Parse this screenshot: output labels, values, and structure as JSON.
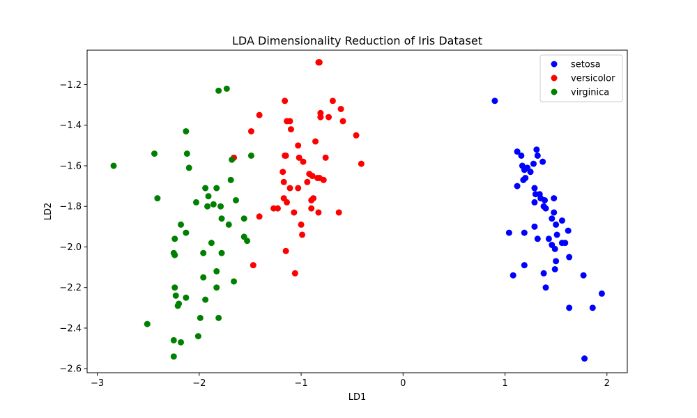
{
  "chart_data": {
    "type": "scatter",
    "title": "LDA Dimensionality Reduction of Iris Dataset",
    "xlabel": "LD1",
    "ylabel": "LD2",
    "xlim": [
      -3.1,
      2.2
    ],
    "ylim": [
      -2.62,
      -1.03
    ],
    "xticks": [
      -3,
      -2,
      -1,
      0,
      1,
      2
    ],
    "xtick_labels": [
      "−3",
      "−2",
      "−1",
      "0",
      "1",
      "2"
    ],
    "yticks": [
      -2.6,
      -2.4,
      -2.2,
      -2.0,
      -1.8,
      -1.6,
      -1.4,
      -1.2
    ],
    "ytick_labels": [
      "−2.6",
      "−2.4",
      "−2.2",
      "−2.0",
      "−1.8",
      "−1.6",
      "−1.4",
      "−1.2"
    ],
    "grid": false,
    "legend_position": "top-right",
    "series": [
      {
        "name": "setosa",
        "color": "#0000ff",
        "points": [
          [
            0.9,
            -1.28
          ],
          [
            1.12,
            -1.53
          ],
          [
            1.16,
            -1.55
          ],
          [
            1.31,
            -1.52
          ],
          [
            1.32,
            -1.55
          ],
          [
            1.37,
            -1.58
          ],
          [
            1.17,
            -1.6
          ],
          [
            1.19,
            -1.62
          ],
          [
            1.22,
            -1.61
          ],
          [
            1.25,
            -1.63
          ],
          [
            1.28,
            -1.59
          ],
          [
            1.18,
            -1.67
          ],
          [
            1.2,
            -1.66
          ],
          [
            1.12,
            -1.7
          ],
          [
            1.29,
            -1.71
          ],
          [
            1.3,
            -1.74
          ],
          [
            1.34,
            -1.74
          ],
          [
            1.35,
            -1.76
          ],
          [
            1.39,
            -1.77
          ],
          [
            1.29,
            -1.78
          ],
          [
            1.38,
            -1.8
          ],
          [
            1.4,
            -1.81
          ],
          [
            1.48,
            -1.76
          ],
          [
            1.48,
            -1.83
          ],
          [
            1.56,
            -1.87
          ],
          [
            1.46,
            -1.86
          ],
          [
            1.5,
            -1.89
          ],
          [
            1.29,
            -1.9
          ],
          [
            1.04,
            -1.93
          ],
          [
            1.19,
            -1.93
          ],
          [
            1.51,
            -1.94
          ],
          [
            1.62,
            -1.92
          ],
          [
            1.32,
            -1.96
          ],
          [
            1.43,
            -1.96
          ],
          [
            1.46,
            -1.99
          ],
          [
            1.56,
            -1.98
          ],
          [
            1.59,
            -1.98
          ],
          [
            1.49,
            -2.01
          ],
          [
            1.63,
            -2.05
          ],
          [
            1.5,
            -2.07
          ],
          [
            1.19,
            -2.09
          ],
          [
            1.49,
            -2.11
          ],
          [
            1.08,
            -2.14
          ],
          [
            1.38,
            -2.13
          ],
          [
            1.77,
            -2.14
          ],
          [
            1.4,
            -2.2
          ],
          [
            1.95,
            -2.23
          ],
          [
            1.63,
            -2.3
          ],
          [
            1.86,
            -2.3
          ],
          [
            1.78,
            -2.55
          ]
        ]
      },
      {
        "name": "versicolor",
        "color": "#ff0000",
        "points": [
          [
            -0.82,
            -1.09
          ],
          [
            -0.83,
            -1.09
          ],
          [
            -0.69,
            -1.28
          ],
          [
            -1.16,
            -1.28
          ],
          [
            -0.61,
            -1.32
          ],
          [
            -0.81,
            -1.34
          ],
          [
            -0.73,
            -1.36
          ],
          [
            -0.81,
            -1.36
          ],
          [
            -1.41,
            -1.35
          ],
          [
            -1.14,
            -1.38
          ],
          [
            -1.11,
            -1.38
          ],
          [
            -0.59,
            -1.38
          ],
          [
            -1.1,
            -1.42
          ],
          [
            -1.49,
            -1.43
          ],
          [
            -0.46,
            -1.45
          ],
          [
            -0.86,
            -1.48
          ],
          [
            -1.03,
            -1.5
          ],
          [
            -1.15,
            -1.55
          ],
          [
            -1.16,
            -1.55
          ],
          [
            -1.02,
            -1.56
          ],
          [
            -1.66,
            -1.56
          ],
          [
            -0.76,
            -1.56
          ],
          [
            -0.98,
            -1.58
          ],
          [
            -0.41,
            -1.59
          ],
          [
            -1.18,
            -1.63
          ],
          [
            -0.92,
            -1.64
          ],
          [
            -0.89,
            -1.65
          ],
          [
            -0.84,
            -1.66
          ],
          [
            -0.82,
            -1.66
          ],
          [
            -1.17,
            -1.68
          ],
          [
            -0.94,
            -1.68
          ],
          [
            -0.78,
            -1.67
          ],
          [
            -1.11,
            -1.71
          ],
          [
            -1.03,
            -1.71
          ],
          [
            -1.17,
            -1.76
          ],
          [
            -0.88,
            -1.76
          ],
          [
            -0.9,
            -1.77
          ],
          [
            -1.14,
            -1.78
          ],
          [
            -1.27,
            -1.81
          ],
          [
            -1.23,
            -1.81
          ],
          [
            -0.9,
            -1.81
          ],
          [
            -1.07,
            -1.83
          ],
          [
            -0.83,
            -1.83
          ],
          [
            -0.63,
            -1.83
          ],
          [
            -1.41,
            -1.85
          ],
          [
            -1.0,
            -1.89
          ],
          [
            -0.99,
            -1.94
          ],
          [
            -1.15,
            -2.02
          ],
          [
            -1.47,
            -2.09
          ],
          [
            -1.06,
            -2.13
          ]
        ]
      },
      {
        "name": "virginica",
        "color": "#008000",
        "points": [
          [
            -1.81,
            -1.23
          ],
          [
            -1.73,
            -1.22
          ],
          [
            -2.13,
            -1.43
          ],
          [
            -2.44,
            -1.54
          ],
          [
            -2.12,
            -1.54
          ],
          [
            -1.49,
            -1.55
          ],
          [
            -1.68,
            -1.57
          ],
          [
            -2.84,
            -1.6
          ],
          [
            -2.1,
            -1.61
          ],
          [
            -1.69,
            -1.67
          ],
          [
            -1.94,
            -1.71
          ],
          [
            -1.83,
            -1.71
          ],
          [
            -1.91,
            -1.75
          ],
          [
            -2.41,
            -1.76
          ],
          [
            -1.64,
            -1.77
          ],
          [
            -2.03,
            -1.78
          ],
          [
            -1.86,
            -1.79
          ],
          [
            -1.92,
            -1.8
          ],
          [
            -1.79,
            -1.8
          ],
          [
            -1.78,
            -1.86
          ],
          [
            -1.56,
            -1.86
          ],
          [
            -2.18,
            -1.89
          ],
          [
            -1.71,
            -1.89
          ],
          [
            -2.13,
            -1.93
          ],
          [
            -1.56,
            -1.95
          ],
          [
            -1.53,
            -1.97
          ],
          [
            -1.88,
            -1.98
          ],
          [
            -2.24,
            -1.96
          ],
          [
            -1.96,
            -2.03
          ],
          [
            -1.78,
            -2.03
          ],
          [
            -2.25,
            -2.03
          ],
          [
            -2.24,
            -2.04
          ],
          [
            -1.83,
            -2.12
          ],
          [
            -1.66,
            -2.17
          ],
          [
            -1.96,
            -2.15
          ],
          [
            -2.24,
            -2.2
          ],
          [
            -1.83,
            -2.2
          ],
          [
            -2.23,
            -2.24
          ],
          [
            -2.13,
            -2.25
          ],
          [
            -1.94,
            -2.26
          ],
          [
            -2.2,
            -2.28
          ],
          [
            -2.21,
            -2.29
          ],
          [
            -1.99,
            -2.35
          ],
          [
            -1.81,
            -2.35
          ],
          [
            -2.51,
            -2.38
          ],
          [
            -2.01,
            -2.44
          ],
          [
            -2.25,
            -2.46
          ],
          [
            -2.18,
            -2.47
          ],
          [
            -2.25,
            -2.54
          ]
        ]
      }
    ]
  }
}
